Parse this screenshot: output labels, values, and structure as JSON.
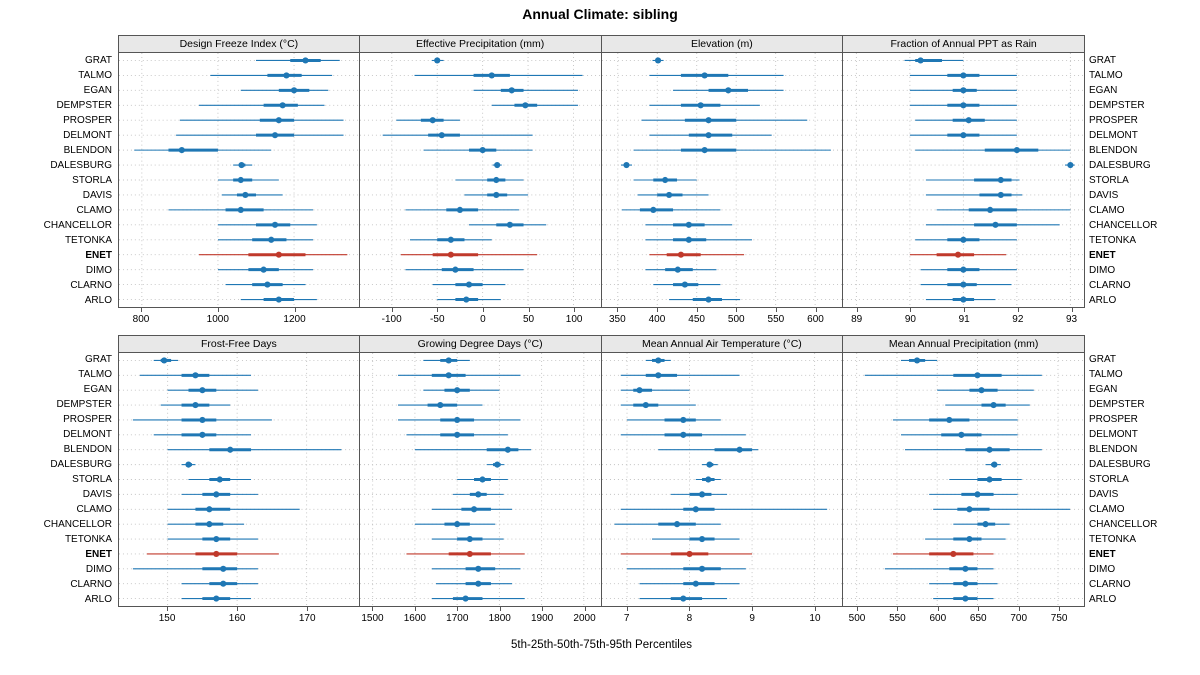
{
  "chart_data": {
    "type": "dotplot-percentile-intervals",
    "title": "Annual Climate: sibling",
    "xlabel": "5th-25th-50th-75th-95th Percentiles",
    "legend": "none",
    "grid": "dotted",
    "stations": [
      "GRAT",
      "TALMO",
      "EGAN",
      "DEMPSTER",
      "PROSPER",
      "DELMONT",
      "BLENDON",
      "DALESBURG",
      "STORLA",
      "DAVIS",
      "CLAMO",
      "CHANCELLOR",
      "TETONKA",
      "ENET",
      "DIMO",
      "CLARNO",
      "ARLO"
    ],
    "highlight_station": "ENET",
    "colors": {
      "normal": "#1f77b4",
      "highlight": "#c0392b",
      "strip_bg": "#e8e8e8",
      "grid": "#c2c2c2",
      "border": "#555555"
    },
    "panels": [
      {
        "title": "Design Freeze Index (°C)",
        "xmin": 740,
        "xmax": 1370,
        "ticks": [
          800,
          1000,
          1200
        ],
        "values": [
          [
            1100,
            1190,
            1230,
            1270,
            1320
          ],
          [
            980,
            1130,
            1180,
            1220,
            1300
          ],
          [
            1060,
            1160,
            1200,
            1240,
            1290
          ],
          [
            950,
            1120,
            1170,
            1210,
            1280
          ],
          [
            900,
            1110,
            1160,
            1200,
            1330
          ],
          [
            890,
            1100,
            1150,
            1200,
            1330
          ],
          [
            780,
            870,
            905,
            1000,
            1140
          ],
          [
            1040,
            1055,
            1062,
            1072,
            1090
          ],
          [
            1000,
            1040,
            1060,
            1090,
            1160
          ],
          [
            1010,
            1050,
            1072,
            1100,
            1170
          ],
          [
            870,
            1020,
            1060,
            1120,
            1250
          ],
          [
            1000,
            1100,
            1150,
            1190,
            1260
          ],
          [
            1000,
            1090,
            1140,
            1180,
            1250
          ],
          [
            950,
            1080,
            1160,
            1230,
            1340
          ],
          [
            1000,
            1080,
            1120,
            1160,
            1250
          ],
          [
            1020,
            1090,
            1130,
            1170,
            1230
          ],
          [
            1060,
            1120,
            1160,
            1200,
            1260
          ]
        ]
      },
      {
        "title": "Effective Precipitation (mm)",
        "xmin": -135,
        "xmax": 130,
        "ticks": [
          -100,
          -50,
          0,
          50,
          100
        ],
        "values": [
          [
            -56,
            -52,
            -50,
            -47,
            -43
          ],
          [
            -75,
            -10,
            10,
            30,
            110
          ],
          [
            -10,
            20,
            32,
            45,
            105
          ],
          [
            10,
            35,
            47,
            60,
            105
          ],
          [
            -95,
            -68,
            -55,
            -43,
            -25
          ],
          [
            -110,
            -60,
            -45,
            -25,
            55
          ],
          [
            -65,
            -15,
            0,
            15,
            55
          ],
          [
            11,
            14,
            16,
            18,
            21
          ],
          [
            -30,
            5,
            15,
            25,
            45
          ],
          [
            -20,
            5,
            15,
            27,
            50
          ],
          [
            -85,
            -40,
            -25,
            -5,
            40
          ],
          [
            -15,
            15,
            30,
            45,
            70
          ],
          [
            -80,
            -50,
            -35,
            -20,
            10
          ],
          [
            -90,
            -55,
            -35,
            -5,
            60
          ],
          [
            -85,
            -45,
            -30,
            -10,
            45
          ],
          [
            -55,
            -30,
            -15,
            0,
            25
          ],
          [
            -50,
            -30,
            -18,
            -5,
            20
          ]
        ]
      },
      {
        "title": "Elevation (m)",
        "xmin": 330,
        "xmax": 635,
        "ticks": [
          350,
          400,
          450,
          500,
          550,
          600
        ],
        "values": [
          [
            394,
            398,
            401,
            404,
            408
          ],
          [
            390,
            430,
            460,
            490,
            560
          ],
          [
            420,
            465,
            490,
            515,
            560
          ],
          [
            390,
            430,
            455,
            480,
            530
          ],
          [
            380,
            435,
            465,
            500,
            590
          ],
          [
            390,
            440,
            465,
            495,
            545
          ],
          [
            370,
            430,
            460,
            500,
            620
          ],
          [
            354,
            358,
            361,
            364,
            368
          ],
          [
            370,
            395,
            410,
            425,
            450
          ],
          [
            375,
            400,
            415,
            432,
            465
          ],
          [
            355,
            378,
            395,
            420,
            480
          ],
          [
            385,
            420,
            440,
            460,
            495
          ],
          [
            385,
            420,
            440,
            462,
            520
          ],
          [
            390,
            412,
            430,
            455,
            510
          ],
          [
            385,
            410,
            426,
            445,
            475
          ],
          [
            395,
            420,
            435,
            452,
            480
          ],
          [
            415,
            445,
            465,
            482,
            505
          ]
        ]
      },
      {
        "title": "Fraction of Annual PPT as Rain",
        "xmin": 88.75,
        "xmax": 93.25,
        "ticks": [
          89,
          90,
          91,
          92,
          93
        ],
        "values": [
          [
            89.9,
            90.1,
            90.2,
            90.6,
            91.0
          ],
          [
            90.0,
            90.7,
            91.0,
            91.3,
            92.0
          ],
          [
            90.0,
            90.8,
            91.0,
            91.25,
            92.0
          ],
          [
            90.0,
            90.7,
            91.0,
            91.3,
            92.0
          ],
          [
            90.1,
            90.8,
            91.1,
            91.4,
            92.0
          ],
          [
            90.0,
            90.7,
            91.0,
            91.3,
            92.0
          ],
          [
            90.1,
            91.4,
            92.0,
            92.4,
            93.0
          ],
          [
            92.9,
            92.97,
            93.0,
            93.03,
            93.08
          ],
          [
            90.3,
            91.2,
            91.7,
            91.9,
            92.05
          ],
          [
            90.3,
            91.3,
            91.7,
            91.9,
            92.1
          ],
          [
            90.5,
            91.1,
            91.5,
            92.0,
            93.0
          ],
          [
            90.3,
            91.2,
            91.6,
            92.0,
            92.8
          ],
          [
            90.1,
            90.7,
            91.0,
            91.3,
            92.0
          ],
          [
            90.0,
            90.5,
            90.9,
            91.2,
            91.8
          ],
          [
            90.2,
            90.7,
            91.0,
            91.3,
            92.0
          ],
          [
            90.2,
            90.7,
            91.0,
            91.25,
            91.9
          ],
          [
            90.3,
            90.8,
            91.0,
            91.2,
            91.6
          ]
        ]
      },
      {
        "title": "Frost-Free Days",
        "xmin": 143,
        "xmax": 177.5,
        "ticks": [
          150,
          160,
          170
        ],
        "values": [
          [
            148,
            149,
            149.5,
            150.5,
            151.5
          ],
          [
            146,
            152,
            154,
            156,
            162
          ],
          [
            150,
            153,
            155,
            157,
            163
          ],
          [
            149,
            152,
            154,
            156,
            159
          ],
          [
            145,
            152,
            155,
            157,
            165
          ],
          [
            148,
            152,
            155,
            157,
            162
          ],
          [
            150,
            156,
            159,
            162,
            175
          ],
          [
            152,
            152.7,
            153,
            153.5,
            154
          ],
          [
            153,
            156,
            157.5,
            159,
            162
          ],
          [
            152,
            155,
            157,
            159,
            163
          ],
          [
            150,
            154,
            156,
            159,
            169
          ],
          [
            150,
            154,
            156,
            158,
            161
          ],
          [
            150,
            155,
            157,
            159,
            163
          ],
          [
            147,
            154,
            157,
            160,
            166
          ],
          [
            145,
            155,
            158,
            160,
            163
          ],
          [
            152,
            156,
            158,
            160,
            163
          ],
          [
            152,
            155,
            157,
            159,
            162
          ]
        ]
      },
      {
        "title": "Growing Degree Days (°C)",
        "xmin": 1470,
        "xmax": 2040,
        "ticks": [
          1500,
          1600,
          1700,
          1800,
          1900,
          2000
        ],
        "values": [
          [
            1620,
            1660,
            1680,
            1700,
            1730
          ],
          [
            1560,
            1640,
            1680,
            1720,
            1850
          ],
          [
            1620,
            1670,
            1700,
            1730,
            1800
          ],
          [
            1560,
            1630,
            1660,
            1700,
            1760
          ],
          [
            1560,
            1660,
            1700,
            1740,
            1850
          ],
          [
            1580,
            1660,
            1700,
            1740,
            1820
          ],
          [
            1600,
            1770,
            1820,
            1845,
            1875
          ],
          [
            1770,
            1785,
            1795,
            1803,
            1812
          ],
          [
            1700,
            1740,
            1760,
            1780,
            1820
          ],
          [
            1690,
            1730,
            1750,
            1770,
            1810
          ],
          [
            1640,
            1710,
            1740,
            1780,
            1830
          ],
          [
            1600,
            1670,
            1700,
            1730,
            1790
          ],
          [
            1640,
            1700,
            1730,
            1760,
            1810
          ],
          [
            1580,
            1680,
            1730,
            1780,
            1860
          ],
          [
            1640,
            1720,
            1750,
            1790,
            1850
          ],
          [
            1650,
            1720,
            1750,
            1780,
            1830
          ],
          [
            1640,
            1690,
            1720,
            1760,
            1860
          ]
        ]
      },
      {
        "title": "Mean Annual Air Temperature (°C)",
        "xmin": 6.6,
        "xmax": 10.45,
        "ticks": [
          7,
          8,
          9,
          10
        ],
        "values": [
          [
            7.3,
            7.4,
            7.5,
            7.6,
            7.7
          ],
          [
            6.9,
            7.3,
            7.5,
            7.8,
            8.8
          ],
          [
            6.9,
            7.1,
            7.2,
            7.4,
            8.0
          ],
          [
            6.9,
            7.1,
            7.3,
            7.5,
            8.1
          ],
          [
            7.0,
            7.6,
            7.9,
            8.1,
            8.5
          ],
          [
            6.9,
            7.6,
            7.9,
            8.2,
            8.9
          ],
          [
            7.5,
            8.4,
            8.8,
            9.0,
            9.1
          ],
          [
            8.2,
            8.28,
            8.32,
            8.38,
            8.45
          ],
          [
            8.1,
            8.2,
            8.3,
            8.4,
            8.5
          ],
          [
            7.7,
            8.0,
            8.2,
            8.35,
            8.6
          ],
          [
            6.9,
            7.9,
            8.1,
            8.4,
            10.2
          ],
          [
            6.8,
            7.5,
            7.8,
            8.1,
            8.5
          ],
          [
            7.4,
            8.0,
            8.2,
            8.4,
            8.8
          ],
          [
            6.9,
            7.7,
            8.0,
            8.3,
            9.0
          ],
          [
            7.0,
            7.9,
            8.2,
            8.5,
            8.9
          ],
          [
            7.2,
            7.9,
            8.1,
            8.4,
            8.8
          ],
          [
            7.2,
            7.7,
            7.9,
            8.2,
            8.6
          ]
        ]
      },
      {
        "title": "Mean Annual Precipitation (mm)",
        "xmin": 483,
        "xmax": 782,
        "ticks": [
          500,
          550,
          600,
          650,
          700,
          750
        ],
        "values": [
          [
            555,
            565,
            575,
            585,
            600
          ],
          [
            510,
            620,
            650,
            680,
            730
          ],
          [
            600,
            640,
            655,
            675,
            720
          ],
          [
            610,
            655,
            670,
            685,
            715
          ],
          [
            545,
            590,
            615,
            640,
            700
          ],
          [
            555,
            605,
            630,
            655,
            700
          ],
          [
            560,
            635,
            665,
            690,
            730
          ],
          [
            660,
            667,
            671,
            674,
            679
          ],
          [
            615,
            650,
            665,
            680,
            705
          ],
          [
            590,
            630,
            650,
            670,
            700
          ],
          [
            595,
            625,
            640,
            665,
            765
          ],
          [
            620,
            650,
            660,
            672,
            690
          ],
          [
            585,
            620,
            640,
            655,
            685
          ],
          [
            545,
            590,
            620,
            645,
            670
          ],
          [
            535,
            615,
            635,
            650,
            670
          ],
          [
            590,
            620,
            635,
            650,
            675
          ],
          [
            595,
            620,
            635,
            650,
            670
          ]
        ]
      }
    ]
  }
}
